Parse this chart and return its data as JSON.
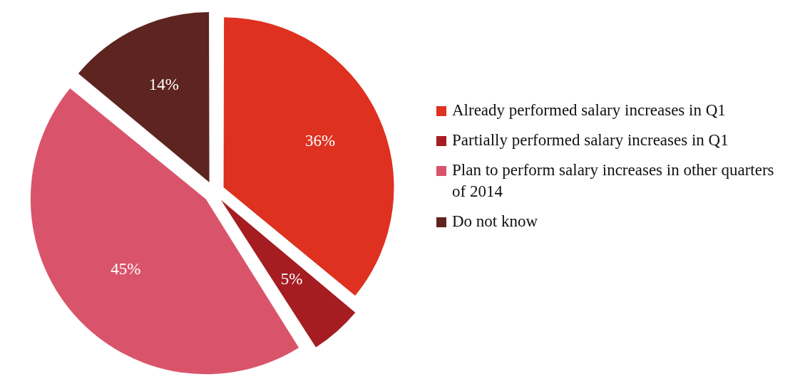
{
  "chart_data": {
    "type": "pie",
    "categories": [
      "Already performed salary increases in Q1",
      "Partially performed salary increases in Q1",
      "Plan to perform salary increases in other quarters of 2014",
      "Do not know"
    ],
    "values": [
      36,
      5,
      45,
      14
    ],
    "colors": [
      "#de3120",
      "#a51d21",
      "#d9546b",
      "#5e2420"
    ],
    "value_labels": [
      "36%",
      "5%",
      "45%",
      "14%"
    ],
    "legend": "right"
  }
}
